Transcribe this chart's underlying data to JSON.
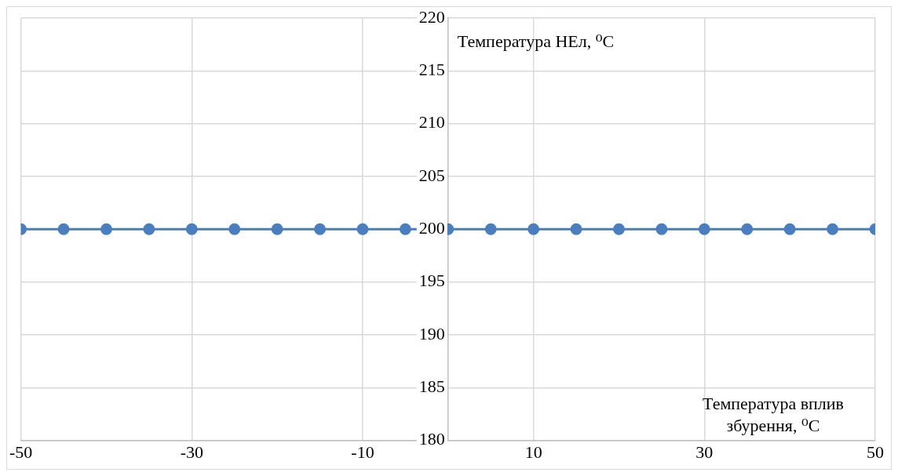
{
  "chart_data": {
    "type": "line",
    "xlabel": "Температура вплив збурення, ⁰C",
    "ylabel": "Температура НЕл, ⁰C",
    "x": [
      -50,
      -45,
      -40,
      -35,
      -30,
      -25,
      -20,
      -15,
      -10,
      -5,
      0,
      5,
      10,
      15,
      20,
      25,
      30,
      35,
      40,
      45,
      50
    ],
    "series": [
      {
        "color": "#4a7ebf",
        "values": [
          200,
          200,
          200,
          200,
          200,
          200,
          200,
          200,
          200,
          200,
          200,
          200,
          200,
          200,
          200,
          200,
          200,
          200,
          200,
          200,
          200
        ]
      }
    ],
    "xlim": [
      -50,
      50
    ],
    "xticks": [
      -50,
      -30,
      -10,
      10,
      30,
      50
    ],
    "ylim": [
      180,
      220
    ],
    "yticks": [
      180,
      185,
      190,
      195,
      200,
      205,
      210,
      215,
      220
    ],
    "grid": true,
    "legend": false,
    "marker": "circle",
    "line_style": "solid"
  }
}
